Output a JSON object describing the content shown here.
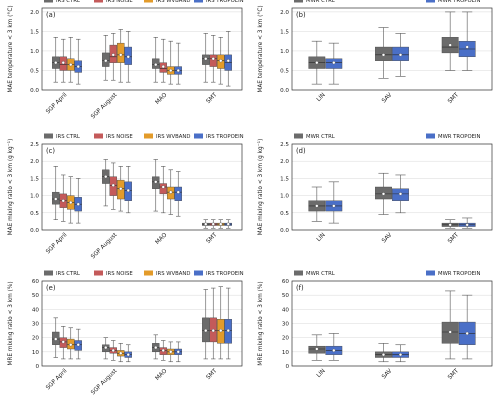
{
  "colors": {
    "IRS CTRL": "#6b6b6b",
    "IRS NOISE": "#c45a5a",
    "IRS WVBAND": "#e39b2a",
    "IRS TROPOEIN": "#4a6fc7",
    "MWR CTRL": "#6b6b6b",
    "MWR TROPOEIN": "#4a6fc7"
  },
  "chart_data": [
    {
      "type": "box",
      "panel": "(a)",
      "ylabel": "MAE temperature < 3 km (°C)",
      "ylim": [
        0,
        2.1
      ],
      "yticks": [
        0.0,
        0.5,
        1.0,
        1.5,
        2.0
      ],
      "ytick_labels": [
        "0.0",
        "0.5",
        "1.0",
        "1.5",
        "2.0"
      ],
      "grid": true,
      "categories": [
        "SGP April",
        "SGP August",
        "MAO",
        "SMT"
      ],
      "legend": [
        "IRS CTRL",
        "IRS NOISE",
        "IRS WVBAND",
        "IRS TROPOEIN"
      ],
      "series": [
        {
          "name": "IRS CTRL",
          "boxes": [
            {
              "whislo": 0.2,
              "q1": 0.55,
              "med": 0.7,
              "q3": 0.85,
              "whishi": 1.35,
              "mean": 0.7
            },
            {
              "whislo": 0.25,
              "q1": 0.6,
              "med": 0.75,
              "q3": 0.95,
              "whishi": 1.4,
              "mean": 0.75
            },
            {
              "whislo": 0.2,
              "q1": 0.55,
              "med": 0.65,
              "q3": 0.8,
              "whishi": 1.35,
              "mean": 0.65
            },
            {
              "whislo": 0.2,
              "q1": 0.65,
              "med": 0.8,
              "q3": 0.9,
              "whishi": 1.45,
              "mean": 0.8
            }
          ]
        },
        {
          "name": "IRS NOISE",
          "boxes": [
            {
              "whislo": 0.2,
              "q1": 0.5,
              "med": 0.65,
              "q3": 0.85,
              "whishi": 1.3,
              "mean": 0.7
            },
            {
              "whislo": 0.25,
              "q1": 0.7,
              "med": 0.85,
              "q3": 1.15,
              "whishi": 1.45,
              "mean": 0.9
            },
            {
              "whislo": 0.2,
              "q1": 0.45,
              "med": 0.55,
              "q3": 0.7,
              "whishi": 1.3,
              "mean": 0.6
            },
            {
              "whislo": 0.2,
              "q1": 0.6,
              "med": 0.8,
              "q3": 0.9,
              "whishi": 1.4,
              "mean": 0.8
            }
          ]
        },
        {
          "name": "IRS WVBAND",
          "boxes": [
            {
              "whislo": 0.2,
              "q1": 0.5,
              "med": 0.65,
              "q3": 0.8,
              "whishi": 1.35,
              "mean": 0.65
            },
            {
              "whislo": 0.2,
              "q1": 0.7,
              "med": 0.9,
              "q3": 1.2,
              "whishi": 1.55,
              "mean": 0.9
            },
            {
              "whislo": 0.15,
              "q1": 0.4,
              "med": 0.5,
              "q3": 0.6,
              "whishi": 1.25,
              "mean": 0.5
            },
            {
              "whislo": 0.15,
              "q1": 0.55,
              "med": 0.75,
              "q3": 0.9,
              "whishi": 1.35,
              "mean": 0.75
            }
          ]
        },
        {
          "name": "IRS TROPOEIN",
          "boxes": [
            {
              "whislo": 0.15,
              "q1": 0.45,
              "med": 0.6,
              "q3": 0.75,
              "whishi": 1.3,
              "mean": 0.6
            },
            {
              "whislo": 0.2,
              "q1": 0.65,
              "med": 0.85,
              "q3": 1.1,
              "whishi": 1.5,
              "mean": 0.85
            },
            {
              "whislo": 0.15,
              "q1": 0.4,
              "med": 0.5,
              "q3": 0.6,
              "whishi": 1.2,
              "mean": 0.5
            },
            {
              "whislo": 0.1,
              "q1": 0.5,
              "med": 0.7,
              "q3": 0.9,
              "whishi": 1.5,
              "mean": 0.75
            }
          ]
        }
      ]
    },
    {
      "type": "box",
      "panel": "(b)",
      "ylabel": "MAE temperature < 3 km (°C)",
      "ylim": [
        0,
        2.1
      ],
      "yticks": [
        0.0,
        0.5,
        1.0,
        1.5,
        2.0
      ],
      "ytick_labels": [
        "0.0",
        "0.5",
        "1.0",
        "1.5",
        "2.0"
      ],
      "grid": true,
      "categories": [
        "LIN",
        "SAV",
        "SMT"
      ],
      "legend": [
        "MWR CTRL",
        "MWR TROPOEIN"
      ],
      "series": [
        {
          "name": "MWR CTRL",
          "boxes": [
            {
              "whislo": 0.15,
              "q1": 0.55,
              "med": 0.7,
              "q3": 0.85,
              "whishi": 1.25,
              "mean": 0.7
            },
            {
              "whislo": 0.3,
              "q1": 0.75,
              "med": 0.9,
              "q3": 1.1,
              "whishi": 1.6,
              "mean": 0.9
            },
            {
              "whislo": 0.5,
              "q1": 0.95,
              "med": 1.1,
              "q3": 1.35,
              "whishi": 2.0,
              "mean": 1.15
            }
          ]
        },
        {
          "name": "MWR TROPOEIN",
          "boxes": [
            {
              "whislo": 0.15,
              "q1": 0.55,
              "med": 0.7,
              "q3": 0.8,
              "whishi": 1.2,
              "mean": 0.7
            },
            {
              "whislo": 0.35,
              "q1": 0.75,
              "med": 0.9,
              "q3": 1.1,
              "whishi": 1.45,
              "mean": 0.9
            },
            {
              "whislo": 0.5,
              "q1": 0.85,
              "med": 1.05,
              "q3": 1.25,
              "whishi": 2.0,
              "mean": 1.1
            }
          ]
        }
      ]
    },
    {
      "type": "box",
      "panel": "(c)",
      "ylabel": "MAE mixing ratio < 3 km (g kg⁻¹)",
      "ylim": [
        0,
        2.5
      ],
      "yticks": [
        0.0,
        0.5,
        1.0,
        1.5,
        2.0,
        2.5
      ],
      "ytick_labels": [
        "0.0",
        "0.5",
        "1.0",
        "1.5",
        "2.0",
        "2.5"
      ],
      "grid": true,
      "categories": [
        "SGP April",
        "SGP August",
        "MAO",
        "SMT"
      ],
      "legend": [
        "IRS CTRL",
        "IRS NOISE",
        "IRS WVBAND",
        "IRS TROPOEIN"
      ],
      "series": [
        {
          "name": "IRS CTRL",
          "boxes": [
            {
              "whislo": 0.3,
              "q1": 0.75,
              "med": 0.9,
              "q3": 1.1,
              "whishi": 1.85,
              "mean": 0.9
            },
            {
              "whislo": 0.7,
              "q1": 1.35,
              "med": 1.55,
              "q3": 1.75,
              "whishi": 2.05,
              "mean": 1.55
            },
            {
              "whislo": 0.55,
              "q1": 1.2,
              "med": 1.4,
              "q3": 1.55,
              "whishi": 2.05,
              "mean": 1.4
            },
            {
              "whislo": 0.05,
              "q1": 0.13,
              "med": 0.17,
              "q3": 0.2,
              "whishi": 0.3,
              "mean": 0.17
            }
          ]
        },
        {
          "name": "IRS NOISE",
          "boxes": [
            {
              "whislo": 0.25,
              "q1": 0.65,
              "med": 0.85,
              "q3": 1.05,
              "whishi": 1.6,
              "mean": 0.85
            },
            {
              "whislo": 0.6,
              "q1": 1.0,
              "med": 1.3,
              "q3": 1.55,
              "whishi": 1.95,
              "mean": 1.3
            },
            {
              "whislo": 0.5,
              "q1": 1.05,
              "med": 1.25,
              "q3": 1.35,
              "whishi": 1.85,
              "mean": 1.25
            },
            {
              "whislo": 0.05,
              "q1": 0.13,
              "med": 0.17,
              "q3": 0.2,
              "whishi": 0.3,
              "mean": 0.17
            }
          ]
        },
        {
          "name": "IRS WVBAND",
          "boxes": [
            {
              "whislo": 0.2,
              "q1": 0.6,
              "med": 0.8,
              "q3": 1.0,
              "whishi": 1.55,
              "mean": 0.8
            },
            {
              "whislo": 0.55,
              "q1": 0.9,
              "med": 1.2,
              "q3": 1.45,
              "whishi": 1.85,
              "mean": 1.2
            },
            {
              "whislo": 0.45,
              "q1": 0.9,
              "med": 1.1,
              "q3": 1.25,
              "whishi": 1.75,
              "mean": 1.1
            },
            {
              "whislo": 0.05,
              "q1": 0.13,
              "med": 0.17,
              "q3": 0.2,
              "whishi": 0.3,
              "mean": 0.17
            }
          ]
        },
        {
          "name": "IRS TROPOEIN",
          "boxes": [
            {
              "whislo": 0.2,
              "q1": 0.55,
              "med": 0.75,
              "q3": 0.95,
              "whishi": 1.5,
              "mean": 0.75
            },
            {
              "whislo": 0.5,
              "q1": 0.85,
              "med": 1.15,
              "q3": 1.4,
              "whishi": 1.85,
              "mean": 1.15
            },
            {
              "whislo": 0.4,
              "q1": 0.85,
              "med": 1.1,
              "q3": 1.25,
              "whishi": 1.7,
              "mean": 1.1
            },
            {
              "whislo": 0.05,
              "q1": 0.13,
              "med": 0.17,
              "q3": 0.2,
              "whishi": 0.3,
              "mean": 0.17
            }
          ]
        }
      ]
    },
    {
      "type": "box",
      "panel": "(d)",
      "ylabel": "MAE mixing ratio < 3 km (g kg⁻¹)",
      "ylim": [
        0,
        2.5
      ],
      "yticks": [
        0.0,
        0.5,
        1.0,
        1.5,
        2.0,
        2.5
      ],
      "ytick_labels": [
        "0.0",
        "0.5",
        "1.0",
        "1.5",
        "2.0",
        "2.5"
      ],
      "grid": true,
      "categories": [
        "LIN",
        "SAV",
        "SMT"
      ],
      "legend": [
        "MWR CTRL",
        "MWR TROPOEIN"
      ],
      "series": [
        {
          "name": "MWR CTRL",
          "boxes": [
            {
              "whislo": 0.25,
              "q1": 0.55,
              "med": 0.7,
              "q3": 0.85,
              "whishi": 1.25,
              "mean": 0.7
            },
            {
              "whislo": 0.45,
              "q1": 0.9,
              "med": 1.05,
              "q3": 1.25,
              "whishi": 1.65,
              "mean": 1.05
            },
            {
              "whislo": 0.05,
              "q1": 0.1,
              "med": 0.15,
              "q3": 0.2,
              "whishi": 0.3,
              "mean": 0.15
            }
          ]
        },
        {
          "name": "MWR TROPOEIN",
          "boxes": [
            {
              "whislo": 0.2,
              "q1": 0.55,
              "med": 0.7,
              "q3": 0.85,
              "whishi": 1.4,
              "mean": 0.7
            },
            {
              "whislo": 0.5,
              "q1": 0.85,
              "med": 1.05,
              "q3": 1.2,
              "whishi": 1.6,
              "mean": 1.05
            },
            {
              "whislo": 0.05,
              "q1": 0.1,
              "med": 0.15,
              "q3": 0.2,
              "whishi": 0.35,
              "mean": 0.15
            }
          ]
        }
      ]
    },
    {
      "type": "box",
      "panel": "(e)",
      "ylabel": "MRE mixing ratio < 3 km (%)",
      "ylim": [
        0,
        60
      ],
      "yticks": [
        0,
        10,
        20,
        30,
        40,
        50,
        60
      ],
      "ytick_labels": [
        "0",
        "10",
        "20",
        "30",
        "40",
        "50",
        "60"
      ],
      "grid": true,
      "categories": [
        "SGP April",
        "SGP August",
        "MAO",
        "SMT"
      ],
      "legend": [
        "IRS CTRL",
        "IRS NOISE",
        "IRS WVBAND",
        "IRS TROPOEIN"
      ],
      "series": [
        {
          "name": "IRS CTRL",
          "boxes": [
            {
              "whislo": 6,
              "q1": 15,
              "med": 19,
              "q3": 24,
              "whishi": 34,
              "mean": 19
            },
            {
              "whislo": 5,
              "q1": 10,
              "med": 13,
              "q3": 15,
              "whishi": 20,
              "mean": 13
            },
            {
              "whislo": 5,
              "q1": 10,
              "med": 13,
              "q3": 16,
              "whishi": 22,
              "mean": 13
            },
            {
              "whislo": 5,
              "q1": 17,
              "med": 25,
              "q3": 34,
              "whishi": 54,
              "mean": 25
            }
          ]
        },
        {
          "name": "IRS NOISE",
          "boxes": [
            {
              "whislo": 5,
              "q1": 13,
              "med": 17,
              "q3": 20,
              "whishi": 28,
              "mean": 17
            },
            {
              "whislo": 4,
              "q1": 9,
              "med": 11,
              "q3": 13,
              "whishi": 18,
              "mean": 11
            },
            {
              "whislo": 4,
              "q1": 8,
              "med": 11,
              "q3": 13,
              "whishi": 18,
              "mean": 11
            },
            {
              "whislo": 5,
              "q1": 17,
              "med": 25,
              "q3": 34,
              "whishi": 55,
              "mean": 25
            }
          ]
        },
        {
          "name": "IRS WVBAND",
          "boxes": [
            {
              "whislo": 5,
              "q1": 12,
              "med": 15,
              "q3": 19,
              "whishi": 27,
              "mean": 15
            },
            {
              "whislo": 3,
              "q1": 7,
              "med": 9,
              "q3": 11,
              "whishi": 16,
              "mean": 9
            },
            {
              "whislo": 3,
              "q1": 8,
              "med": 10,
              "q3": 12,
              "whishi": 17,
              "mean": 10
            },
            {
              "whislo": 5,
              "q1": 16,
              "med": 25,
              "q3": 33,
              "whishi": 56,
              "mean": 25
            }
          ]
        },
        {
          "name": "IRS TROPOEIN",
          "boxes": [
            {
              "whislo": 5,
              "q1": 11,
              "med": 15,
              "q3": 18,
              "whishi": 26,
              "mean": 15
            },
            {
              "whislo": 3,
              "q1": 6,
              "med": 8,
              "q3": 10,
              "whishi": 15,
              "mean": 8
            },
            {
              "whislo": 3,
              "q1": 8,
              "med": 10,
              "q3": 12,
              "whishi": 17,
              "mean": 10
            },
            {
              "whislo": 5,
              "q1": 16,
              "med": 25,
              "q3": 33,
              "whishi": 55,
              "mean": 25
            }
          ]
        }
      ]
    },
    {
      "type": "box",
      "panel": "(f)",
      "ylabel": "MRE mixing ratio < 3 km (%)",
      "ylim": [
        0,
        60
      ],
      "yticks": [
        0,
        10,
        20,
        30,
        40,
        50,
        60
      ],
      "ytick_labels": [
        "0",
        "10",
        "20",
        "30",
        "40",
        "50",
        "60"
      ],
      "grid": true,
      "categories": [
        "LIN",
        "SAV",
        "SMT"
      ],
      "legend": [
        "MWR CTRL",
        "MWR TROPOEIN"
      ],
      "series": [
        {
          "name": "MWR CTRL",
          "boxes": [
            {
              "whislo": 4,
              "q1": 9,
              "med": 12,
              "q3": 14,
              "whishi": 22,
              "mean": 12
            },
            {
              "whislo": 3,
              "q1": 6,
              "med": 8,
              "q3": 10,
              "whishi": 16,
              "mean": 8
            },
            {
              "whislo": 5,
              "q1": 16,
              "med": 24,
              "q3": 31,
              "whishi": 53,
              "mean": 24
            }
          ]
        },
        {
          "name": "MWR TROPOEIN",
          "boxes": [
            {
              "whislo": 4,
              "q1": 8,
              "med": 11,
              "q3": 14,
              "whishi": 23,
              "mean": 11
            },
            {
              "whislo": 3,
              "q1": 6,
              "med": 8,
              "q3": 10,
              "whishi": 15,
              "mean": 8
            },
            {
              "whislo": 5,
              "q1": 15,
              "med": 23,
              "q3": 31,
              "whishi": 50,
              "mean": 23
            }
          ]
        }
      ]
    }
  ]
}
